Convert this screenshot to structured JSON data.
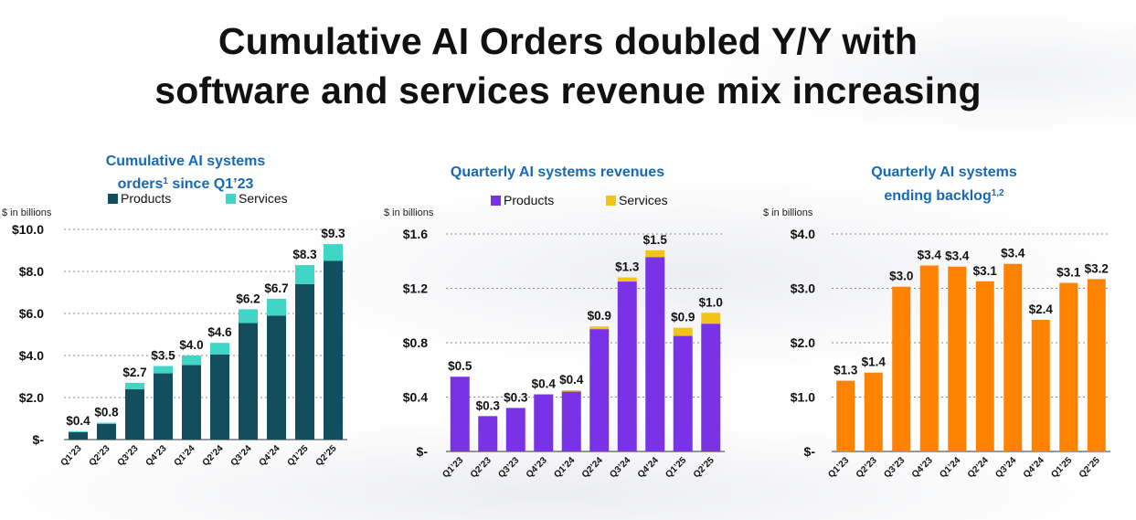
{
  "page": {
    "title_line1": "Cumulative AI Orders doubled Y/Y with",
    "title_line2": "software and services revenue mix increasing"
  },
  "colors": {
    "products_cumulative": "#134e5e",
    "services": "#3fd6c6",
    "products_revenue": "#7a32e6",
    "services_revenue": "#f3c416",
    "backlog": "#ff8200",
    "chart_title": "#1769b5"
  },
  "chart_data": [
    {
      "type": "bar",
      "stacked": true,
      "title_lines": [
        "Cumulative AI systems",
        "orders",
        "1",
        " since Q1’23"
      ],
      "units_label": "$ in billions",
      "categories": [
        "Q1'23",
        "Q2'23",
        "Q3'23",
        "Q4'23",
        "Q1'24",
        "Q2'24",
        "Q3'24",
        "Q4'24",
        "Q1'25",
        "Q2'25"
      ],
      "series": [
        {
          "name": "Products",
          "values": [
            0.35,
            0.75,
            2.4,
            3.15,
            3.55,
            4.05,
            5.55,
            5.9,
            7.4,
            8.5
          ]
        },
        {
          "name": "Services",
          "values": [
            0.05,
            0.05,
            0.3,
            0.35,
            0.45,
            0.55,
            0.65,
            0.8,
            0.9,
            0.8
          ]
        }
      ],
      "data_labels": [
        "$0.4",
        "$0.8",
        "$2.7",
        "$3.5",
        "$4.0",
        "$4.6",
        "$6.2",
        "$6.7",
        "$8.3",
        "$9.3"
      ],
      "yticks": [
        "$-",
        "$2.0",
        "$4.0",
        "$6.0",
        "$8.0",
        "$10.0"
      ],
      "ylim": [
        0,
        10
      ],
      "legend": "top"
    },
    {
      "type": "bar",
      "stacked": true,
      "title_lines": [
        "Quarterly AI systems revenues"
      ],
      "units_label": "$ in billions",
      "categories": [
        "Q1'23",
        "Q2'23",
        "Q3'23",
        "Q4'23",
        "Q1'24",
        "Q2'24",
        "Q3'24",
        "Q4'24",
        "Q1'25",
        "Q2'25"
      ],
      "series": [
        {
          "name": "Products",
          "values": [
            0.55,
            0.26,
            0.32,
            0.42,
            0.44,
            0.9,
            1.25,
            1.43,
            0.85,
            0.94
          ]
        },
        {
          "name": "Services",
          "values": [
            0.0,
            0.0,
            0.0,
            0.0,
            0.01,
            0.02,
            0.03,
            0.05,
            0.06,
            0.08
          ]
        }
      ],
      "data_labels": [
        "$0.5",
        "$0.3",
        "$0.3",
        "$0.4",
        "$0.4",
        "$0.9",
        "$1.3",
        "$1.5",
        "$0.9",
        "$1.0"
      ],
      "yticks": [
        "$-",
        "$0.4",
        "$0.8",
        "$1.2",
        "$1.6"
      ],
      "ylim": [
        0,
        1.6
      ],
      "legend": "top"
    },
    {
      "type": "bar",
      "stacked": false,
      "title_lines": [
        "Quarterly AI systems",
        "ending backlog",
        "1,2"
      ],
      "units_label": "$ in billions",
      "categories": [
        "Q1'23",
        "Q2'23",
        "Q3'23",
        "Q4'23",
        "Q1'24",
        "Q2'24",
        "Q3'24",
        "Q4'24",
        "Q1'25",
        "Q2'25"
      ],
      "series": [
        {
          "name": "Backlog",
          "values": [
            1.3,
            1.45,
            3.03,
            3.42,
            3.4,
            3.13,
            3.45,
            2.42,
            3.1,
            3.17
          ]
        }
      ],
      "data_labels": [
        "$1.3",
        "$1.4",
        "$3.0",
        "$3.4",
        "$3.4",
        "$3.1",
        "$3.4",
        "$2.4",
        "$3.1",
        "$3.2"
      ],
      "yticks": [
        "$-",
        "$1.0",
        "$2.0",
        "$3.0",
        "$4.0"
      ],
      "ylim": [
        0,
        4
      ],
      "legend": "none"
    }
  ]
}
